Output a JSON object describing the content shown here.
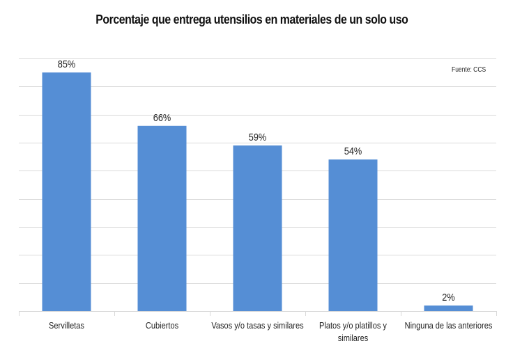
{
  "chart_data": {
    "type": "bar",
    "title": "Porcentaje que entrega utensilios en materiales de un solo uso",
    "source": "Fuente: CCS",
    "categories": [
      "Servilletas",
      "Cubiertos",
      "Vasos y/o tasas y similares",
      "Platos y/o platillos y similares",
      "Ninguna de las anteriores"
    ],
    "category_lines": [
      [
        "Servilletas"
      ],
      [
        "Cubiertos"
      ],
      [
        "Vasos y/o tasas y similares"
      ],
      [
        "Platos y/o platillos y",
        "similares"
      ],
      [
        "Ninguna de las anteriores"
      ]
    ],
    "values": [
      85,
      66,
      59,
      54,
      2
    ],
    "data_labels": [
      "85%",
      "66%",
      "59%",
      "54%",
      "2%"
    ],
    "xlabel": "",
    "ylabel": "",
    "ylim": [
      0,
      90
    ],
    "ystep": 10,
    "grid": true,
    "legend": "none",
    "bar_color": "#558ED5"
  }
}
